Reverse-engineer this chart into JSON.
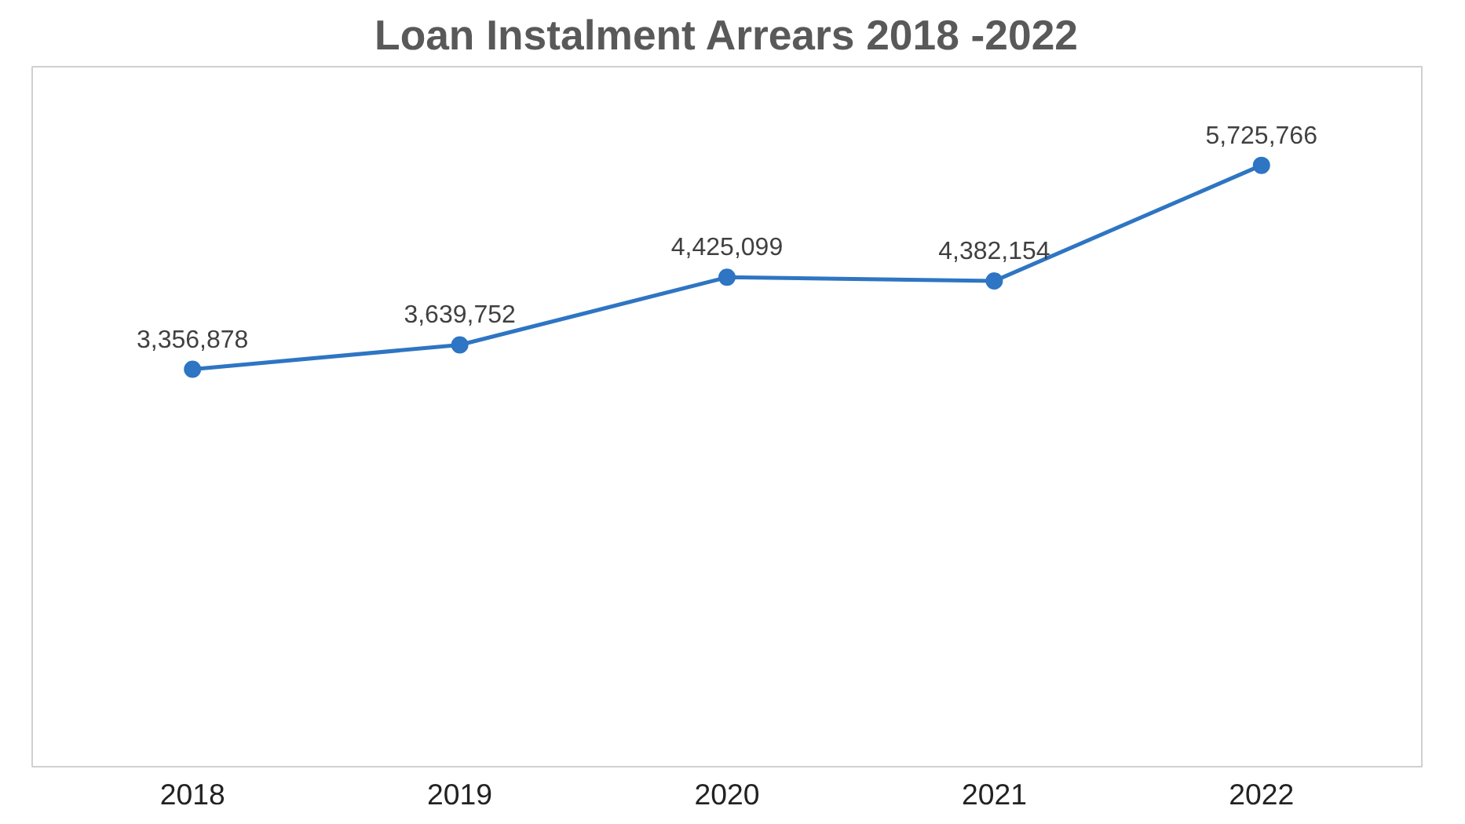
{
  "chart_data": {
    "type": "line",
    "title": "Loan Instalment Arrears 2018 -2022",
    "categories": [
      "2018",
      "2019",
      "2020",
      "2021",
      "2022"
    ],
    "series": [
      {
        "color": "#2e75c3",
        "values": [
          3356878,
          3639752,
          4425099,
          4382154,
          5725766
        ],
        "value_labels": [
          "3,356,878",
          "3,639,752",
          "4,425,099",
          "4,382,154",
          "5,725,766"
        ]
      }
    ],
    "tick_labels": "x",
    "marker": "circle"
  }
}
